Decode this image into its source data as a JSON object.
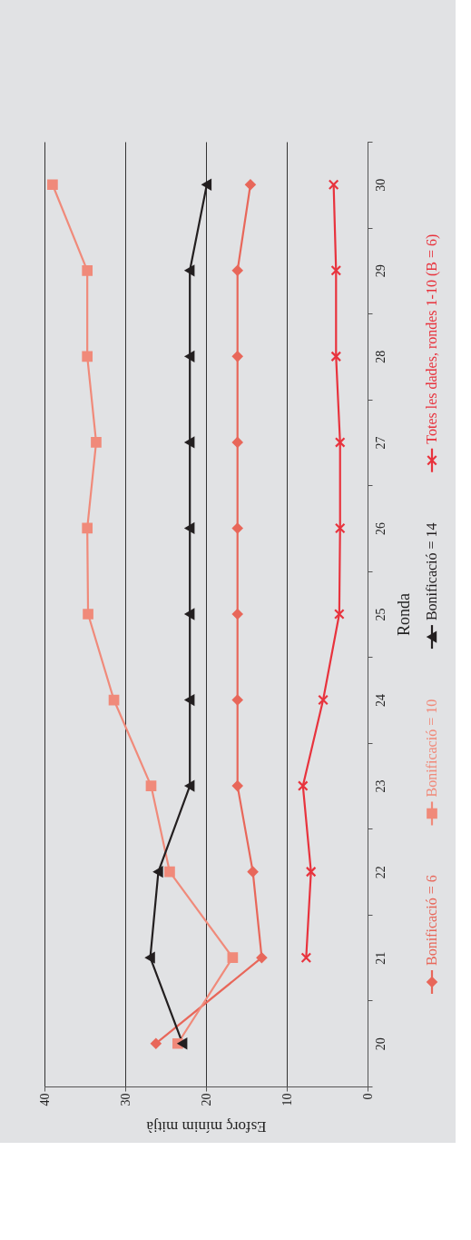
{
  "chart_data": {
    "type": "line",
    "orientation": "horizontal",
    "xlabel": "Esforç mínim mitjà",
    "ylabel": "Ronda",
    "categories": [
      "30",
      "29",
      "28",
      "27",
      "26",
      "25",
      "24",
      "23",
      "22",
      "21",
      "20"
    ],
    "series": [
      {
        "name": "Bonificació = 6",
        "color": "#e8675a",
        "marker": "diamond",
        "values": [
          14.5,
          16.1,
          16.1,
          16.1,
          16.1,
          16.1,
          16.1,
          16.1,
          14.2,
          13.1,
          26.2
        ]
      },
      {
        "name": "Bonificació = 10",
        "color": "#f08a7a",
        "marker": "square",
        "values": [
          39.0,
          34.7,
          34.7,
          33.6,
          34.7,
          34.6,
          31.4,
          26.8,
          24.5,
          16.7,
          23.5
        ]
      },
      {
        "name": "Bonificació = 14",
        "color": "#231f20",
        "marker": "triangle",
        "values": [
          19.9,
          22.0,
          22.0,
          22.0,
          22.0,
          22.0,
          22.0,
          22.0,
          25.9,
          26.9,
          22.9
        ]
      },
      {
        "name": "Totes les dades, rondes 1-10 (B = 6)",
        "color": "#e8333d",
        "marker": "cross",
        "values": [
          4.2,
          3.9,
          3.9,
          3.4,
          3.4,
          3.5,
          5.5,
          8.0,
          7.0,
          7.6,
          null
        ]
      }
    ],
    "xlim": [
      40,
      0
    ],
    "xticks": [
      40,
      30,
      20,
      10,
      0
    ],
    "grid": "x",
    "legend": "right",
    "line_style": "solid"
  }
}
